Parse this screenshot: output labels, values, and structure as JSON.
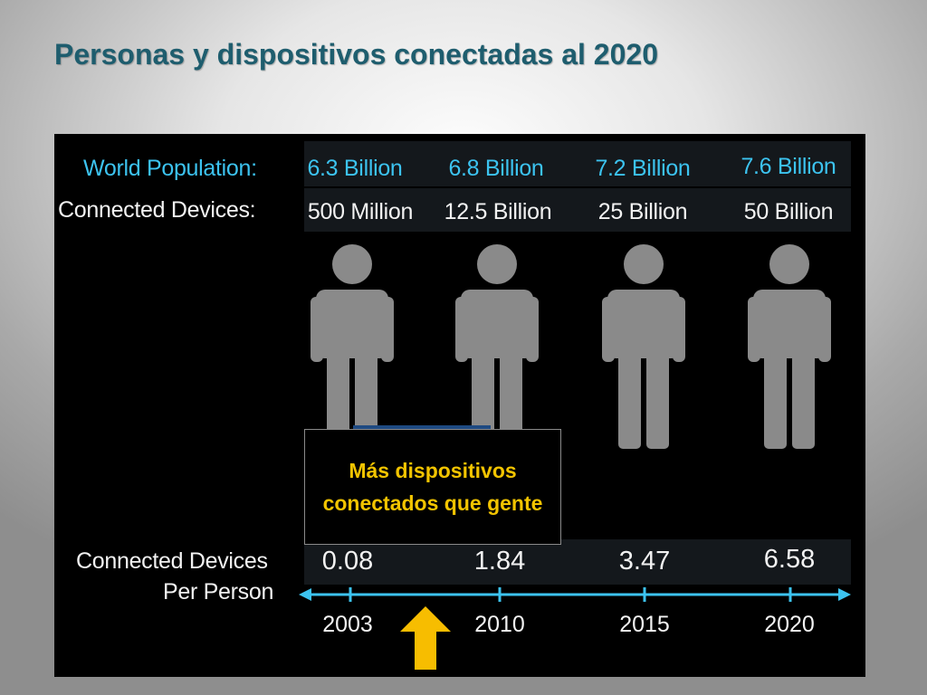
{
  "title": "Personas y dispositivos conectadas al 2020",
  "colors": {
    "title": "#1e5d6e",
    "population": "#3cc3f0",
    "axis": "#3cc3f0",
    "callout_text": "#f2c400",
    "arrow": "#f7bd00",
    "person": "#8a8a8a"
  },
  "labels": {
    "population": "World Population:",
    "devices": "Connected Devices:",
    "per_person_line1": "Connected Devices",
    "per_person_line2": "Per Person"
  },
  "callout": "Más dispositivos conectados que gente",
  "chart_data": {
    "type": "table",
    "categories": [
      "2003",
      "2010",
      "2015",
      "2020"
    ],
    "world_population": [
      "6.3 Billion",
      "6.8 Billion",
      "7.2 Billion",
      "7.6 Billion"
    ],
    "connected_devices": [
      "500 Million",
      "12.5 Billion",
      "25 Billion",
      "50 Billion"
    ],
    "devices_per_person": [
      0.08,
      1.84,
      3.47,
      6.58
    ],
    "icons": [
      "person-icon",
      "arrow-up-icon"
    ]
  }
}
